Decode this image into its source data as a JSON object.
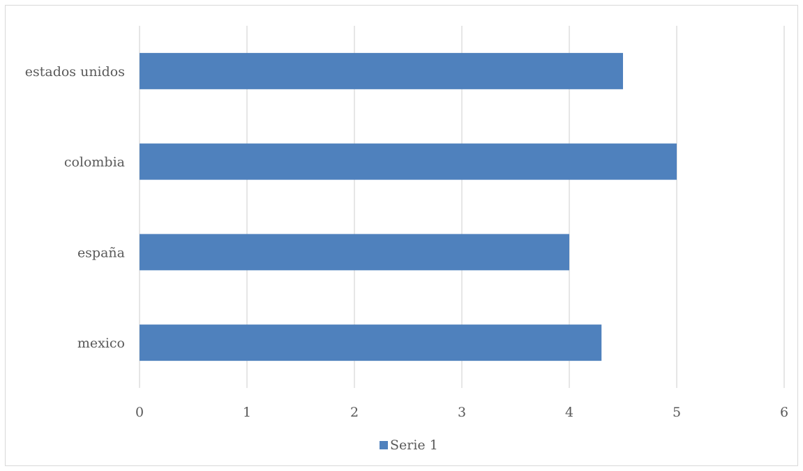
{
  "chart_data": {
    "type": "bar",
    "orientation": "horizontal",
    "categories": [
      "estados unidos",
      "colombia",
      "españa",
      "mexico"
    ],
    "series": [
      {
        "name": "Serie 1",
        "values": [
          4.5,
          5,
          4,
          4.3
        ],
        "color": "#4f81bd"
      }
    ],
    "title": "",
    "xlabel": "",
    "ylabel": "",
    "xlim": [
      0,
      6
    ],
    "xticks": [
      "0",
      "1",
      "2",
      "3",
      "4",
      "5",
      "6"
    ],
    "grid": "vertical",
    "legend": "bottom",
    "colors": {
      "grid": "#d9d9d9",
      "text": "#595959",
      "border": "#d9d9d9"
    }
  }
}
